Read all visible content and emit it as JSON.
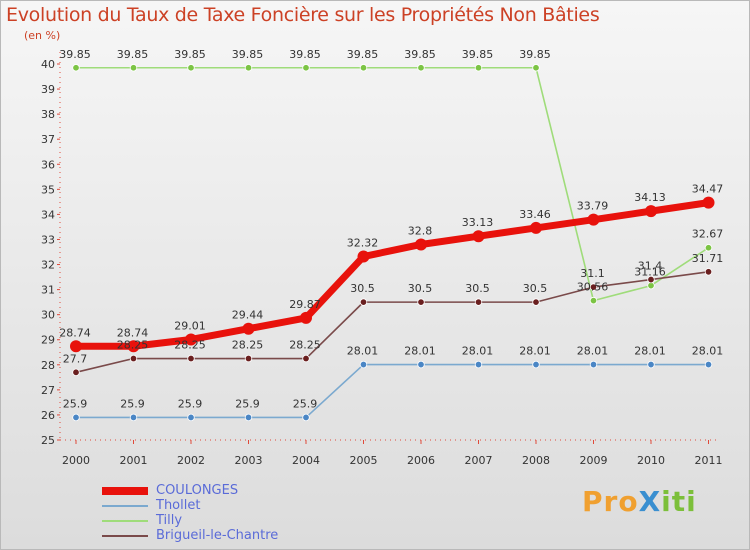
{
  "chart_data": {
    "type": "line",
    "title": "Evolution du Taux de Taxe Foncière sur les Propriétés Non Bâties",
    "ylabel": "(en %)",
    "xlabel": "",
    "ylim": [
      25,
      40
    ],
    "yticks": [
      "25",
      "26",
      "27",
      "28",
      "29",
      "30",
      "31",
      "32",
      "33",
      "34",
      "35",
      "36",
      "37",
      "38",
      "39",
      "40"
    ],
    "categories": [
      "2000",
      "2001",
      "2002",
      "2003",
      "2004",
      "2005",
      "2006",
      "2007",
      "2008",
      "2009",
      "2010",
      "2011"
    ],
    "series": [
      {
        "name": "COULONGES",
        "color": "#e8120c",
        "marker_color": "#e8120c",
        "values": [
          28.74,
          28.74,
          29.01,
          29.44,
          29.87,
          32.32,
          32.8,
          33.13,
          33.46,
          33.79,
          34.13,
          34.47
        ],
        "labels": [
          "28.74",
          "28.74",
          "29.01",
          "29.44",
          "29.87",
          "32.32",
          "32.8",
          "33.13",
          "33.46",
          "33.79",
          "34.13",
          "34.47"
        ]
      },
      {
        "name": "Thollet",
        "color": "#7ba9cf",
        "marker_color": "#4a86c5",
        "values": [
          25.9,
          25.9,
          25.9,
          25.9,
          25.9,
          28.01,
          28.01,
          28.01,
          28.01,
          28.01,
          28.01,
          28.01
        ],
        "labels": [
          "25.9",
          "25.9",
          "25.9",
          "25.9",
          "25.9",
          "28.01",
          "28.01",
          "28.01",
          "28.01",
          "28.01",
          "28.01",
          "28.01"
        ]
      },
      {
        "name": "Tilly",
        "color": "#9fdc7a",
        "marker_color": "#7cc444",
        "values": [
          39.85,
          39.85,
          39.85,
          39.85,
          39.85,
          39.85,
          39.85,
          39.85,
          39.85,
          30.56,
          31.16,
          32.67
        ],
        "labels": [
          "39.85",
          "39.85",
          "39.85",
          "39.85",
          "39.85",
          "39.85",
          "39.85",
          "39.85",
          "39.85",
          "30.56",
          "31.16",
          "32.67"
        ]
      },
      {
        "name": "Brigueil-le-Chantre",
        "color": "#7a4a4a",
        "marker_color": "#6a1f1f",
        "values": [
          27.7,
          28.25,
          28.25,
          28.25,
          28.25,
          30.5,
          30.5,
          30.5,
          30.5,
          31.1,
          31.4,
          31.71
        ],
        "labels": [
          "27.7",
          "28.25",
          "28.25",
          "28.25",
          "28.25",
          "30.5",
          "30.5",
          "30.5",
          "30.5",
          "31.1",
          "31.4",
          "31.71"
        ]
      }
    ],
    "legend": [
      "COULONGES",
      "Thollet",
      "Tilly",
      "Brigueil-le-Chantre"
    ],
    "legend_position": "bottom-left",
    "grid": false
  },
  "logo": {
    "text": "ProXiti",
    "p1": "Pro",
    "p2": "X",
    "p3": "iti"
  }
}
